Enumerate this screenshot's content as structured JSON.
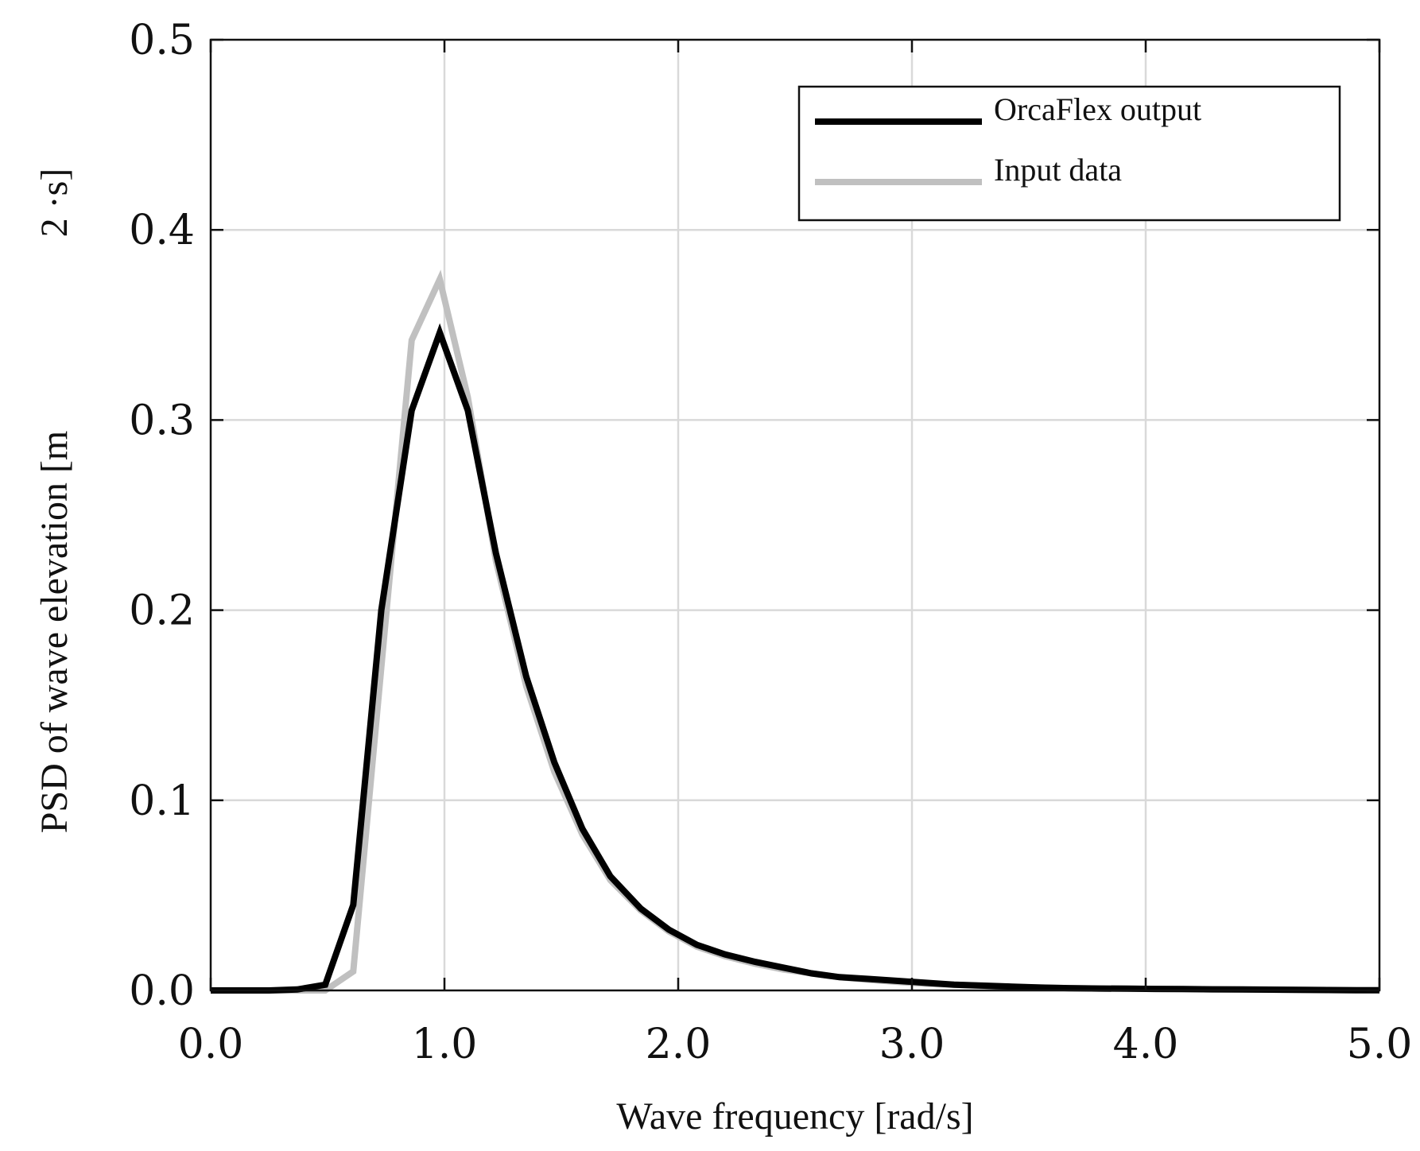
{
  "chart_data": {
    "type": "line",
    "title": "",
    "xlabel": "Wave frequency [rad/s]",
    "ylabel": "PSD of wave elevation [m",
    "ylabel_suffix": "2 ·s]",
    "xlim": [
      0,
      5
    ],
    "ylim": [
      0,
      0.5
    ],
    "xticks": [
      0,
      1,
      2,
      3,
      4,
      5
    ],
    "xtick_labels": [
      "0.0",
      "1.0",
      "2.0",
      "3.0",
      "4.0",
      "5.0"
    ],
    "yticks": [
      0,
      0.1,
      0.2,
      0.3,
      0.4,
      0.5
    ],
    "ytick_labels": [
      "0.0",
      "0.1",
      "0.2",
      "0.3",
      "0.4",
      "0.5"
    ],
    "grid": true,
    "legend_position": "top-right",
    "series": [
      {
        "name": "OrcaFlex output",
        "color": "#000000",
        "x": [
          0.0,
          0.12,
          0.25,
          0.37,
          0.49,
          0.61,
          0.73,
          0.86,
          0.98,
          1.1,
          1.22,
          1.35,
          1.47,
          1.59,
          1.71,
          1.84,
          1.96,
          2.08,
          2.2,
          2.33,
          2.45,
          2.57,
          2.69,
          2.82,
          2.94,
          3.06,
          3.18,
          3.31,
          3.43,
          3.55,
          3.67,
          3.8,
          3.92,
          4.04,
          4.16,
          4.29,
          4.41,
          4.53,
          4.65,
          4.78,
          4.9,
          5.0
        ],
        "y": [
          0.0,
          0.0,
          0.0,
          0.0005,
          0.003,
          0.045,
          0.2,
          0.305,
          0.346,
          0.305,
          0.23,
          0.165,
          0.12,
          0.085,
          0.06,
          0.043,
          0.032,
          0.024,
          0.019,
          0.015,
          0.012,
          0.009,
          0.007,
          0.006,
          0.005,
          0.004,
          0.003,
          0.0025,
          0.002,
          0.0015,
          0.0012,
          0.001,
          0.0009,
          0.0008,
          0.0007,
          0.0006,
          0.0005,
          0.0004,
          0.0003,
          0.0002,
          0.0001,
          0.0001
        ]
      },
      {
        "name": "Input data",
        "color": "#c0c0c0",
        "x": [
          0.0,
          0.12,
          0.25,
          0.37,
          0.49,
          0.61,
          0.73,
          0.86,
          0.98,
          1.1,
          1.22,
          1.35,
          1.47,
          1.59,
          1.71,
          1.84,
          1.96,
          2.08,
          2.2,
          2.33,
          2.45,
          2.57,
          2.69,
          2.82,
          2.94,
          3.06,
          3.18,
          3.31,
          3.43,
          3.55,
          3.67,
          3.8,
          3.92,
          4.04,
          4.16,
          4.29,
          4.41,
          4.53,
          4.65,
          4.78,
          4.9,
          5.0
        ],
        "y": [
          0.0,
          0.0,
          0.0,
          0.0,
          0.0,
          0.01,
          0.17,
          0.342,
          0.374,
          0.312,
          0.226,
          0.16,
          0.115,
          0.082,
          0.058,
          0.042,
          0.031,
          0.023,
          0.018,
          0.014,
          0.011,
          0.009,
          0.007,
          0.0055,
          0.0045,
          0.0035,
          0.003,
          0.0024,
          0.0019,
          0.0015,
          0.0012,
          0.001,
          0.0009,
          0.0008,
          0.0007,
          0.0006,
          0.0005,
          0.0004,
          0.0003,
          0.0002,
          0.0001,
          0.0001
        ]
      }
    ]
  }
}
